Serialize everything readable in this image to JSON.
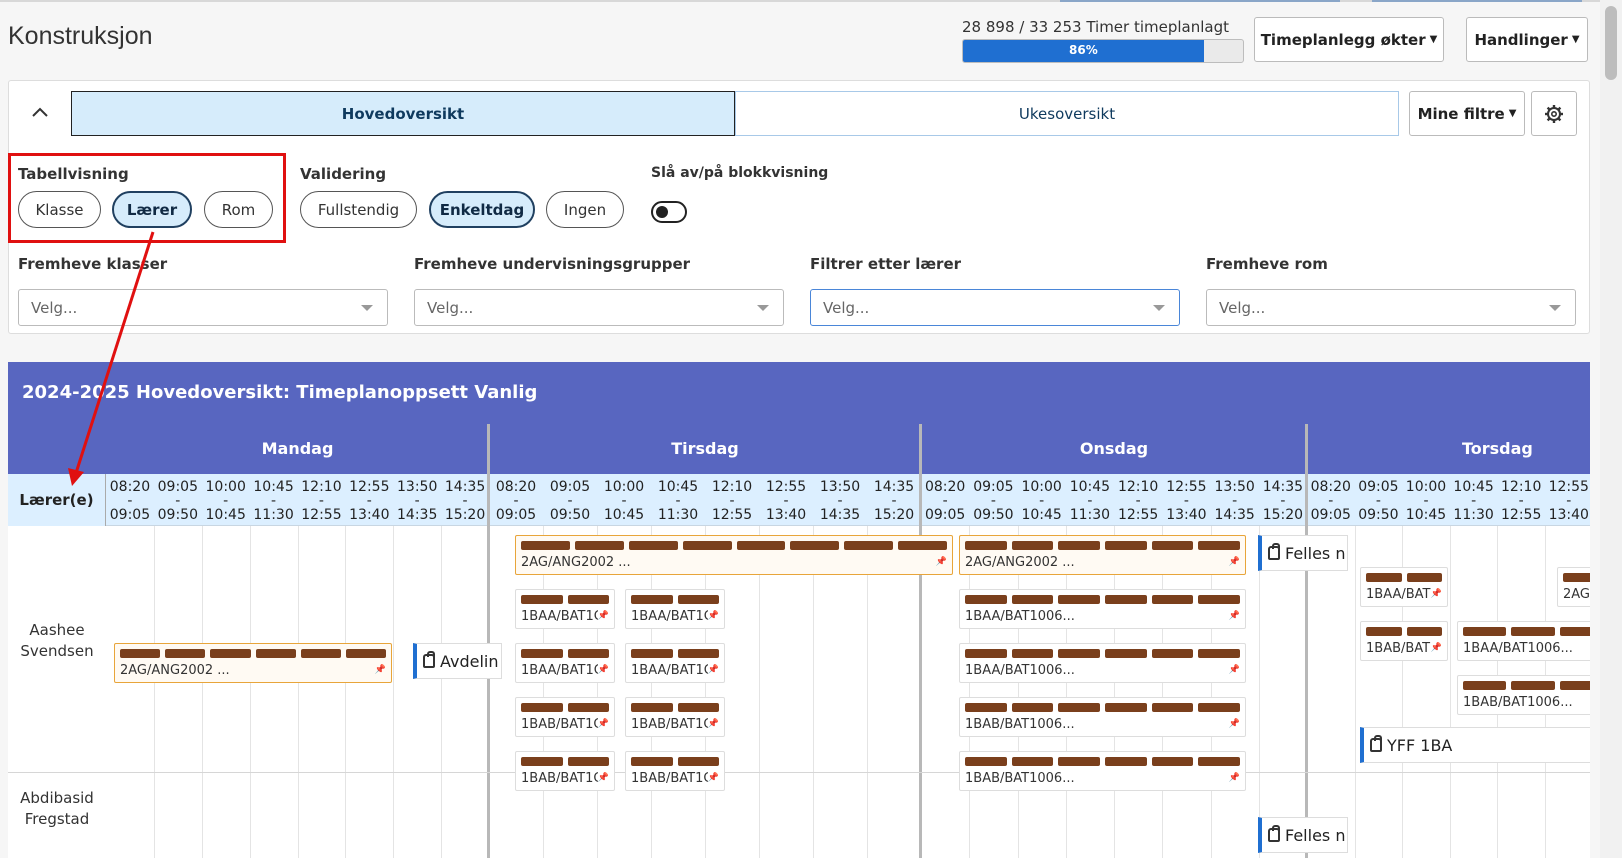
{
  "header": {
    "title": "Konstruksjon",
    "progress_label": "28 898 / 33 253 Timer timeplanlagt",
    "progress_percent": 86,
    "progress_text": "86%",
    "schedule_button": "Timeplanlegg økter",
    "actions_button": "Handlinger"
  },
  "panel": {
    "tab_main": "Hovedoversikt",
    "tab_week": "Ukesoversikt",
    "my_filters": "Mine filtre",
    "table_view_label": "Tabellvisning",
    "table_view_options": [
      "Klasse",
      "Lærer",
      "Rom"
    ],
    "table_view_selected": "Lærer",
    "validation_label": "Validering",
    "validation_options": [
      "Fullstendig",
      "Enkeltdag",
      "Ingen"
    ],
    "validation_selected": "Enkeltdag",
    "block_toggle_label": "Slå av/på blokkvisning",
    "block_toggle_on": false,
    "filters": [
      {
        "label": "Fremheve klasser",
        "placeholder": "Velg..."
      },
      {
        "label": "Fremheve undervisningsgrupper",
        "placeholder": "Velg..."
      },
      {
        "label": "Filtrer etter lærer",
        "placeholder": "Velg..."
      },
      {
        "label": "Fremheve rom",
        "placeholder": "Velg..."
      }
    ]
  },
  "grid": {
    "title": "2024-2025 Hovedoversikt: Timeplanoppsett Vanlig",
    "corner_label": "Lærer(e)",
    "days": [
      "Mandag",
      "Tirsdag",
      "Onsdag",
      "Torsdag"
    ],
    "times": [
      [
        "08:20",
        "09:05"
      ],
      [
        "09:05",
        "09:50"
      ],
      [
        "10:00",
        "10:45"
      ],
      [
        "10:45",
        "11:30"
      ],
      [
        "12:10",
        "12:55"
      ],
      [
        "12:55",
        "13:40"
      ],
      [
        "13:50",
        "14:35"
      ],
      [
        "14:35",
        "15:20"
      ]
    ],
    "teachers": [
      {
        "first": "Aashee",
        "last": "Svendsen"
      },
      {
        "first": "Abdibasid",
        "last": "Fregstad"
      }
    ],
    "card_texts": {
      "ang": "2AG/ANG2002 ...",
      "ang_short": "2AG/",
      "baa_short": "1BAA/BAT1C",
      "bab_short": "1BAB/BAT1C",
      "baa_thu": "1BAA/BAT",
      "bab_thu": "1BAB/BAT",
      "baa_long": "1BAA/BAT1006...",
      "bab_long": "1BAB/BAT1006...",
      "avdelin": "Avdelin",
      "felles": "Felles n",
      "yff": "YFF 1BA"
    }
  },
  "colors": {
    "accent": "#5866c0",
    "progress": "#1f6fd1",
    "card_bar": "#7a3f1c",
    "highlight": "#e01010"
  }
}
